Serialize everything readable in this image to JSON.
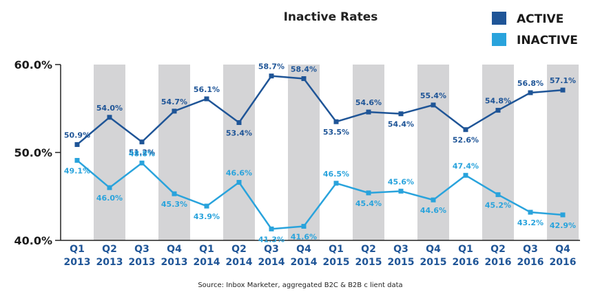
{
  "chart_data": {
    "type": "line",
    "title": "Inactive Rates",
    "categories": [
      [
        "Q1",
        "2013"
      ],
      [
        "Q2",
        "2013"
      ],
      [
        "Q3",
        "2013"
      ],
      [
        "Q4",
        "2013"
      ],
      [
        "Q1",
        "2014"
      ],
      [
        "Q2",
        "2014"
      ],
      [
        "Q3",
        "2014"
      ],
      [
        "Q4",
        "2014"
      ],
      [
        "Q1",
        "2015"
      ],
      [
        "Q2",
        "2015"
      ],
      [
        "Q3",
        "2015"
      ],
      [
        "Q4",
        "2015"
      ],
      [
        "Q1",
        "2016"
      ],
      [
        "Q2",
        "2016"
      ],
      [
        "Q3",
        "2016"
      ],
      [
        "Q4",
        "2016"
      ]
    ],
    "series": [
      {
        "name": "ACTIVE",
        "color": "#1f5597",
        "values": [
          50.9,
          54.0,
          51.2,
          54.7,
          56.1,
          53.4,
          58.7,
          58.4,
          53.5,
          54.6,
          54.4,
          55.4,
          52.6,
          54.8,
          56.8,
          57.1
        ],
        "labels": [
          "50.9%",
          "54.0%",
          "51.2%",
          "54.7%",
          "56.1%",
          "53.4%",
          "58.7%",
          "58.4%",
          "53.5%",
          "54.6%",
          "54.4%",
          "55.4%",
          "52.6%",
          "54.8%",
          "56.8%",
          "57.1%"
        ]
      },
      {
        "name": "INACTIVE",
        "color": "#29a3dc",
        "values": [
          49.1,
          46.0,
          48.8,
          45.3,
          43.9,
          46.6,
          41.3,
          41.6,
          46.5,
          45.4,
          45.6,
          44.6,
          47.4,
          45.2,
          43.2,
          42.9
        ],
        "labels": [
          "49.1%",
          "46.0%",
          "48.8%",
          "45.3%",
          "43.9%",
          "46.6%",
          "41.3%",
          "41.6%",
          "46.5%",
          "45.4%",
          "45.6%",
          "44.6%",
          "47.4%",
          "45.2%",
          "43.2%",
          "42.9%"
        ]
      }
    ],
    "ylim": [
      40,
      60
    ],
    "yticks": [
      {
        "value": 60,
        "label": "60.0%"
      },
      {
        "value": 50,
        "label": "50.0%"
      },
      {
        "value": 40,
        "label": "40.0%"
      }
    ],
    "xlabel": "",
    "ylabel": "",
    "legend_position": "top-right",
    "grid": false,
    "shaded_columns": "even quarters",
    "shade_color": "#d4d4d6",
    "axis_label_color": "#1f5597",
    "source": "Source: Inbox Marketer, aggregated B2C & B2B c lient data"
  }
}
